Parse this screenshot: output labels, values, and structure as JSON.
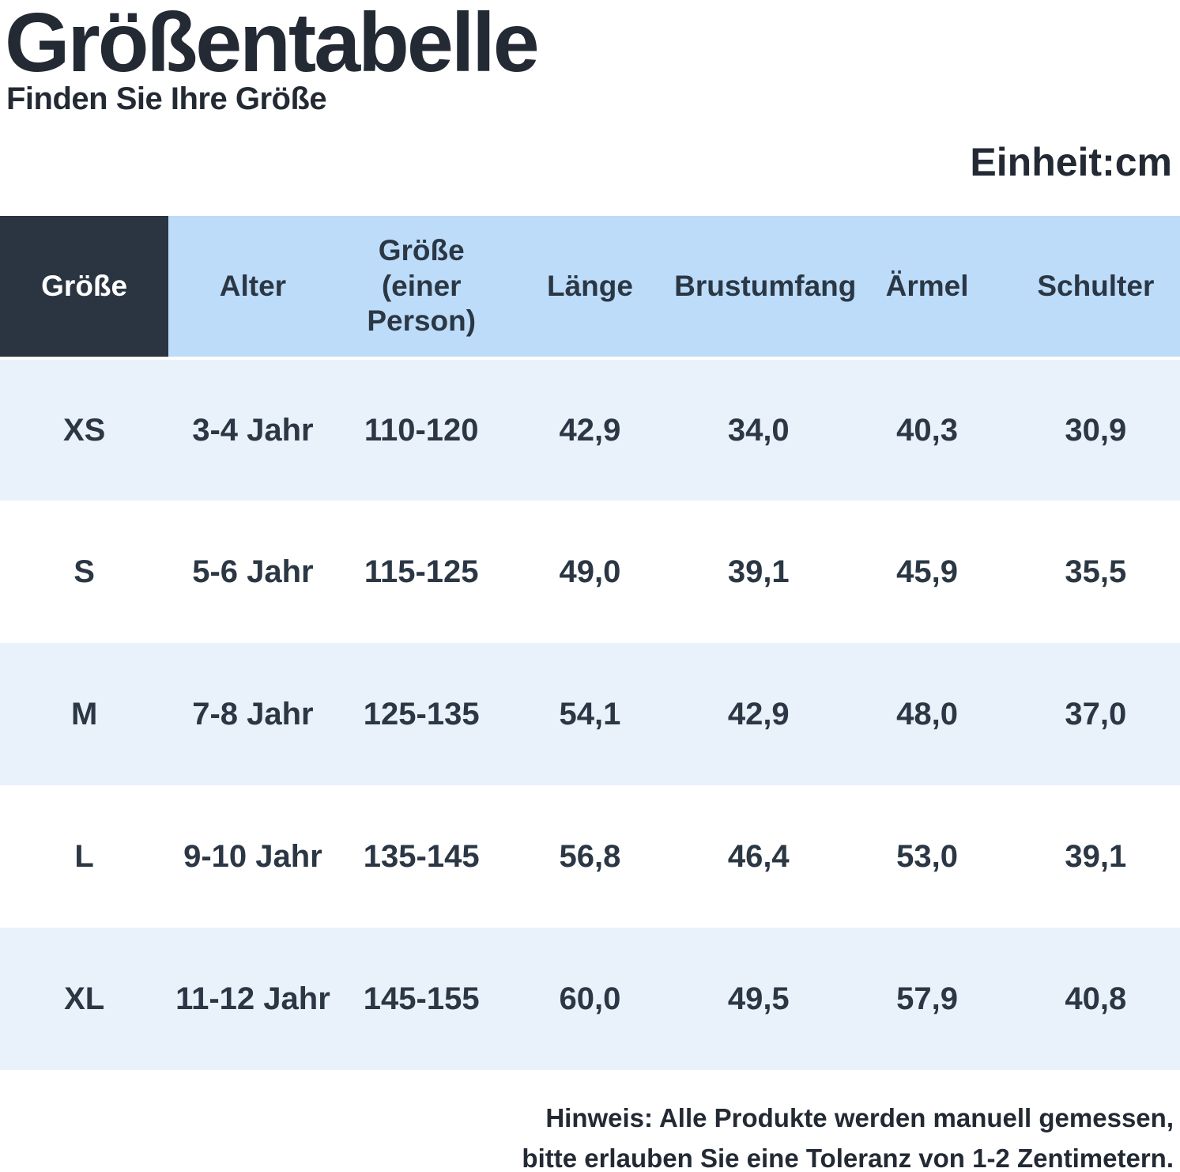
{
  "page": {
    "title": "Größentabelle",
    "subtitle": "Finden Sie Ihre Größe",
    "unit_label": "Einheit:cm",
    "note": {
      "line1": "Hinweis: Alle Produkte werden manuell gemessen,",
      "line2": "bitte erlauben Sie eine Toleranz von 1-2 Zentimetern."
    }
  },
  "colors": {
    "title_text": "#232a34",
    "header_dark_bg": "#2b3541",
    "header_dark_text": "#ffffff",
    "header_blue_bg": "#bddcf9",
    "row_alt_bg": "#e9f1fb",
    "row_bg": "#ffffff",
    "cell_text": "#2b3744"
  },
  "table": {
    "columns": [
      "Größe",
      "Alter",
      "Größe\n(einer Person)",
      "Länge",
      "Brustumfang",
      "Ärmel",
      "Schulter"
    ],
    "rows": [
      [
        "XS",
        "3-4 Jahr",
        "110-120",
        "42,9",
        "34,0",
        "40,3",
        "30,9"
      ],
      [
        "S",
        "5-6 Jahr",
        "115-125",
        "49,0",
        "39,1",
        "45,9",
        "35,5"
      ],
      [
        "M",
        "7-8 Jahr",
        "125-135",
        "54,1",
        "42,9",
        "48,0",
        "37,0"
      ],
      [
        "L",
        "9-10 Jahr",
        "135-145",
        "56,8",
        "46,4",
        "53,0",
        "39,1"
      ],
      [
        "XL",
        "11-12 Jahr",
        "145-155",
        "60,0",
        "49,5",
        "57,9",
        "40,8"
      ]
    ]
  }
}
